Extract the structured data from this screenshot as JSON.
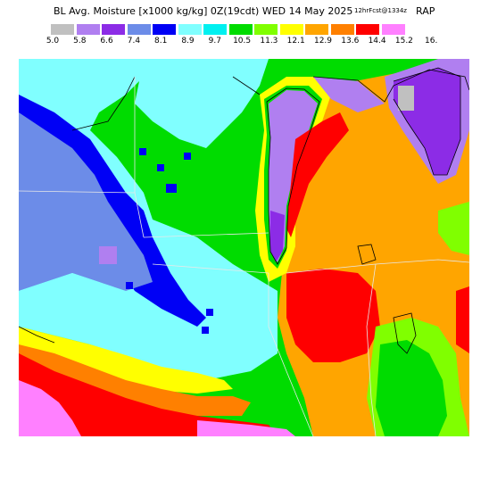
{
  "title": {
    "main": "BL Avg. Moisture [x1000 kg/kg] 0Z(19cdt) WED 14 May 2025",
    "small": "12hrFcst@1334z",
    "model": "RAP"
  },
  "legend": {
    "ticks": [
      "5.0",
      "5.8",
      "6.6",
      "7.4",
      "8.1",
      "8.9",
      "9.7",
      "10.5",
      "11.3",
      "12.1",
      "12.9",
      "13.6",
      "14.4",
      "15.2",
      "16."
    ],
    "colors": [
      "#c0c0c0",
      "#b07ff0",
      "#8c2ce6",
      "#6c8ce8",
      "#0000f5",
      "#80ffff",
      "#00f0f0",
      "#00dc00",
      "#80ff00",
      "#ffff00",
      "#ffa500",
      "#ff8000",
      "#ff0000",
      "#ff80ff"
    ]
  },
  "map": {
    "description_colors": {
      "background": "#ffffff",
      "outline": "#000000",
      "state_lines": "#e0e0e0"
    }
  }
}
